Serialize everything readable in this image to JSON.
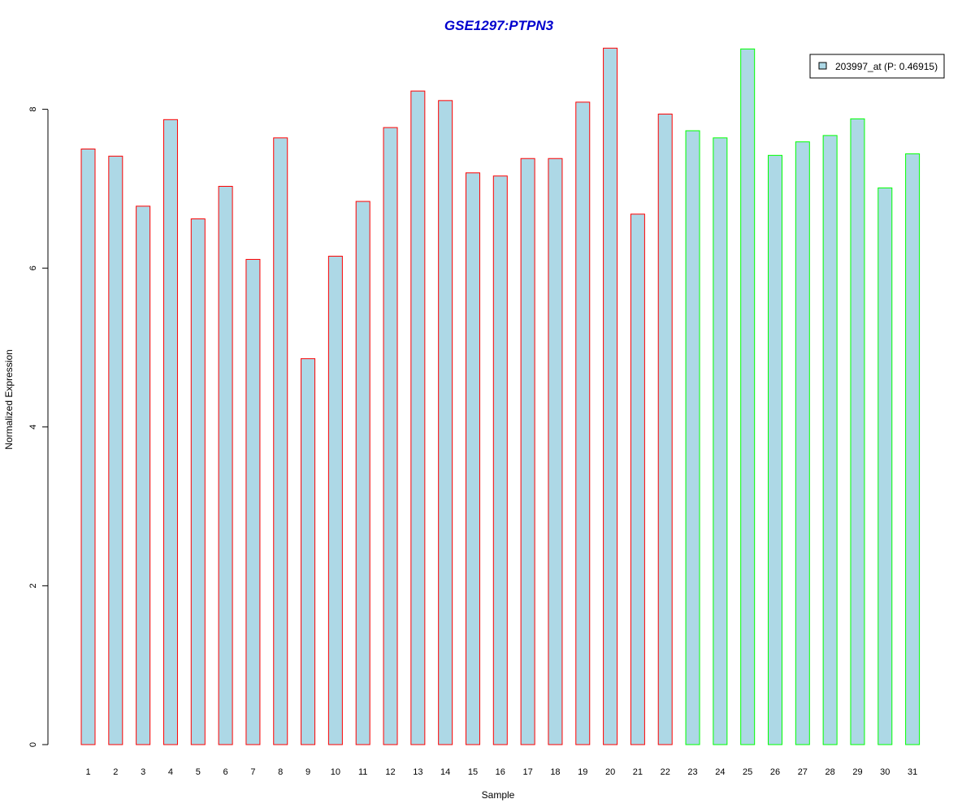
{
  "chart_data": {
    "type": "bar",
    "title": "GSE1297:PTPN3",
    "xlabel": "Sample",
    "ylabel": "Normalized Expression",
    "ylim": [
      0,
      8.8
    ],
    "yticks": [
      0,
      2,
      4,
      6,
      8
    ],
    "categories": [
      "1",
      "2",
      "3",
      "4",
      "5",
      "6",
      "7",
      "8",
      "9",
      "10",
      "11",
      "12",
      "13",
      "14",
      "15",
      "16",
      "17",
      "18",
      "19",
      "20",
      "21",
      "22",
      "23",
      "24",
      "25",
      "26",
      "27",
      "28",
      "29",
      "30",
      "31"
    ],
    "series": [
      {
        "name": "203997_at (P: 0.46915)",
        "values": [
          7.5,
          7.41,
          6.78,
          7.87,
          6.62,
          7.03,
          6.11,
          7.64,
          4.86,
          6.15,
          6.84,
          7.77,
          8.23,
          8.11,
          7.2,
          7.16,
          7.38,
          7.38,
          8.09,
          8.77,
          6.68,
          7.94,
          7.73,
          7.64,
          8.76,
          7.42,
          7.59,
          7.67,
          7.88,
          7.01,
          7.44
        ]
      }
    ],
    "bar_fill": "#add8e6",
    "group_border_colors": [
      "#ff0000",
      "#ff0000",
      "#ff0000",
      "#ff0000",
      "#ff0000",
      "#ff0000",
      "#ff0000",
      "#ff0000",
      "#ff0000",
      "#ff0000",
      "#ff0000",
      "#ff0000",
      "#ff0000",
      "#ff0000",
      "#ff0000",
      "#ff0000",
      "#ff0000",
      "#ff0000",
      "#ff0000",
      "#ff0000",
      "#ff0000",
      "#ff0000",
      "#00ff00",
      "#00ff00",
      "#00ff00",
      "#00ff00",
      "#00ff00",
      "#00ff00",
      "#00ff00",
      "#00ff00",
      "#00ff00"
    ],
    "title_color": "#0000cd",
    "legend_position": "top-right",
    "grid": false
  }
}
